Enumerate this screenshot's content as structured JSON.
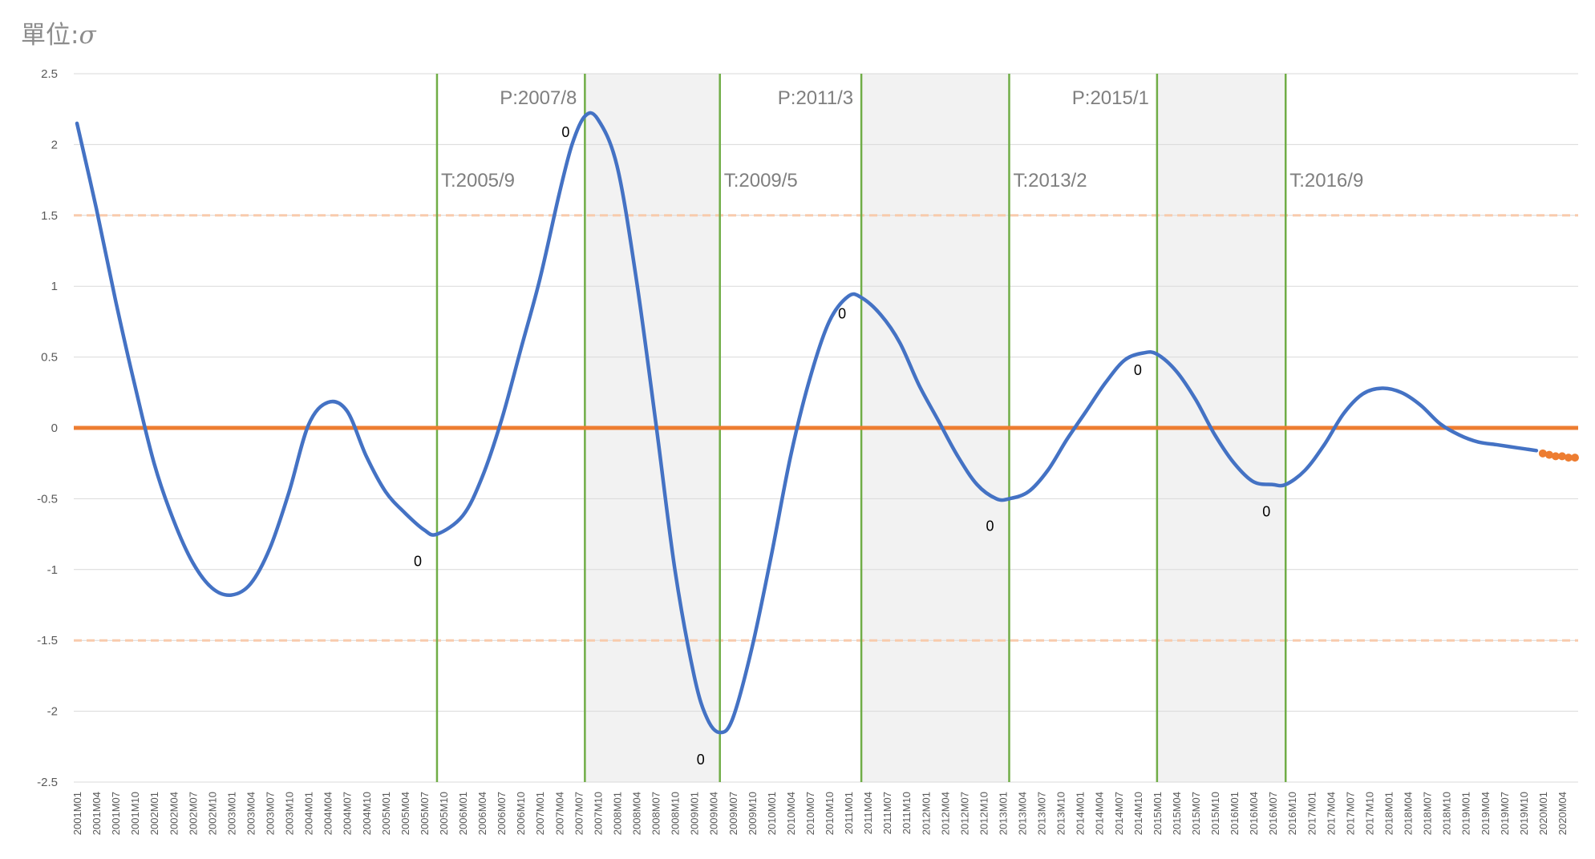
{
  "unit_label": {
    "prefix": "單位:",
    "symbol": "σ"
  },
  "chart_data": {
    "type": "line",
    "ylim": [
      -2.5,
      2.5
    ],
    "y_ticks": [
      "2.5",
      "2",
      "1.5",
      "1",
      "0.5",
      "0",
      "-0.5",
      "-1",
      "-1.5",
      "-2",
      "-2.5"
    ],
    "x_start": "2001M01",
    "x_end": "2020M06",
    "x_tick_step_months": 3,
    "grid": "horizontal",
    "colors": {
      "index_line": "#4472c4",
      "zero_line": "#ed7d31",
      "forecast_dots": "#ed7d31",
      "threshold_lines": "#f8cbad",
      "turning_point_lines": "#70ad47",
      "contraction_shading": "#f2f2f2",
      "grid": "#d9d9d9"
    },
    "threshold_lines": [
      1.5,
      -1.5
    ],
    "zero_line": 0,
    "series": [
      {
        "role": "index",
        "x": [
          "2001M01",
          "2001M04",
          "2001M07",
          "2001M10",
          "2002M01",
          "2002M04",
          "2002M07",
          "2002M10",
          "2003M01",
          "2003M04",
          "2003M07",
          "2003M10",
          "2004M01",
          "2004M04",
          "2004M07",
          "2004M10",
          "2005M01",
          "2005M04",
          "2005M07",
          "2005M09",
          "2006M01",
          "2006M04",
          "2006M07",
          "2006M10",
          "2007M01",
          "2007M04",
          "2007M06",
          "2007M08",
          "2007M10",
          "2008M01",
          "2008M04",
          "2008M07",
          "2008M10",
          "2009M01",
          "2009M03",
          "2009M05",
          "2009M07",
          "2009M10",
          "2010M01",
          "2010M04",
          "2010M07",
          "2010M10",
          "2011M01",
          "2011M03",
          "2011M06",
          "2011M09",
          "2011M12",
          "2012M03",
          "2012M06",
          "2012M09",
          "2012M12",
          "2013M02",
          "2013M05",
          "2013M08",
          "2013M11",
          "2014M02",
          "2014M05",
          "2014M08",
          "2014M11",
          "2015M01",
          "2015M04",
          "2015M07",
          "2015M10",
          "2016M01",
          "2016M04",
          "2016M07",
          "2016M09",
          "2016M12",
          "2017M03",
          "2017M06",
          "2017M09",
          "2017M12",
          "2018M03",
          "2018M06",
          "2018M09",
          "2018M12",
          "2019M03",
          "2019M06",
          "2019M09",
          "2019M12"
        ],
        "values": [
          2.15,
          1.55,
          0.9,
          0.3,
          -0.25,
          -0.65,
          -0.95,
          -1.13,
          -1.18,
          -1.1,
          -0.85,
          -0.45,
          0.02,
          0.18,
          0.12,
          -0.2,
          -0.45,
          -0.6,
          -0.72,
          -0.75,
          -0.62,
          -0.35,
          0.05,
          0.55,
          1.05,
          1.65,
          2.0,
          2.2,
          2.18,
          1.85,
          1.05,
          0.05,
          -1.0,
          -1.75,
          -2.05,
          -2.15,
          -2.05,
          -1.55,
          -0.9,
          -0.2,
          0.35,
          0.75,
          0.93,
          0.92,
          0.8,
          0.6,
          0.3,
          0.05,
          -0.2,
          -0.4,
          -0.5,
          -0.5,
          -0.45,
          -0.3,
          -0.08,
          0.12,
          0.32,
          0.48,
          0.53,
          0.52,
          0.4,
          0.2,
          -0.05,
          -0.25,
          -0.38,
          -0.4,
          -0.4,
          -0.3,
          -0.12,
          0.1,
          0.24,
          0.28,
          0.25,
          0.16,
          0.03,
          -0.05,
          -0.1,
          -0.12,
          -0.14,
          -0.16
        ]
      },
      {
        "role": "forecast",
        "x": [
          "2020M01",
          "2020M02",
          "2020M03",
          "2020M04",
          "2020M05",
          "2020M06"
        ],
        "values": [
          -0.18,
          -0.19,
          -0.2,
          -0.2,
          -0.21,
          -0.21
        ]
      }
    ],
    "turning_points": [
      {
        "date": "2005M09",
        "label": "T:2005/9",
        "marker_value": "0"
      },
      {
        "date": "2007M08",
        "label": "P:2007/8",
        "marker_value": "0"
      },
      {
        "date": "2009M05",
        "label": "T:2009/5",
        "marker_value": "0"
      },
      {
        "date": "2011M03",
        "label": "P:2011/3",
        "marker_value": "0"
      },
      {
        "date": "2013M02",
        "label": "T:2013/2",
        "marker_value": "0"
      },
      {
        "date": "2015M01",
        "label": "P:2015/1",
        "marker_value": "0"
      },
      {
        "date": "2016M09",
        "label": "T:2016/9",
        "marker_value": "0"
      }
    ],
    "contractions": [
      [
        "2007M08",
        "2009M05"
      ],
      [
        "2011M03",
        "2013M02"
      ],
      [
        "2015M01",
        "2016M09"
      ]
    ]
  }
}
